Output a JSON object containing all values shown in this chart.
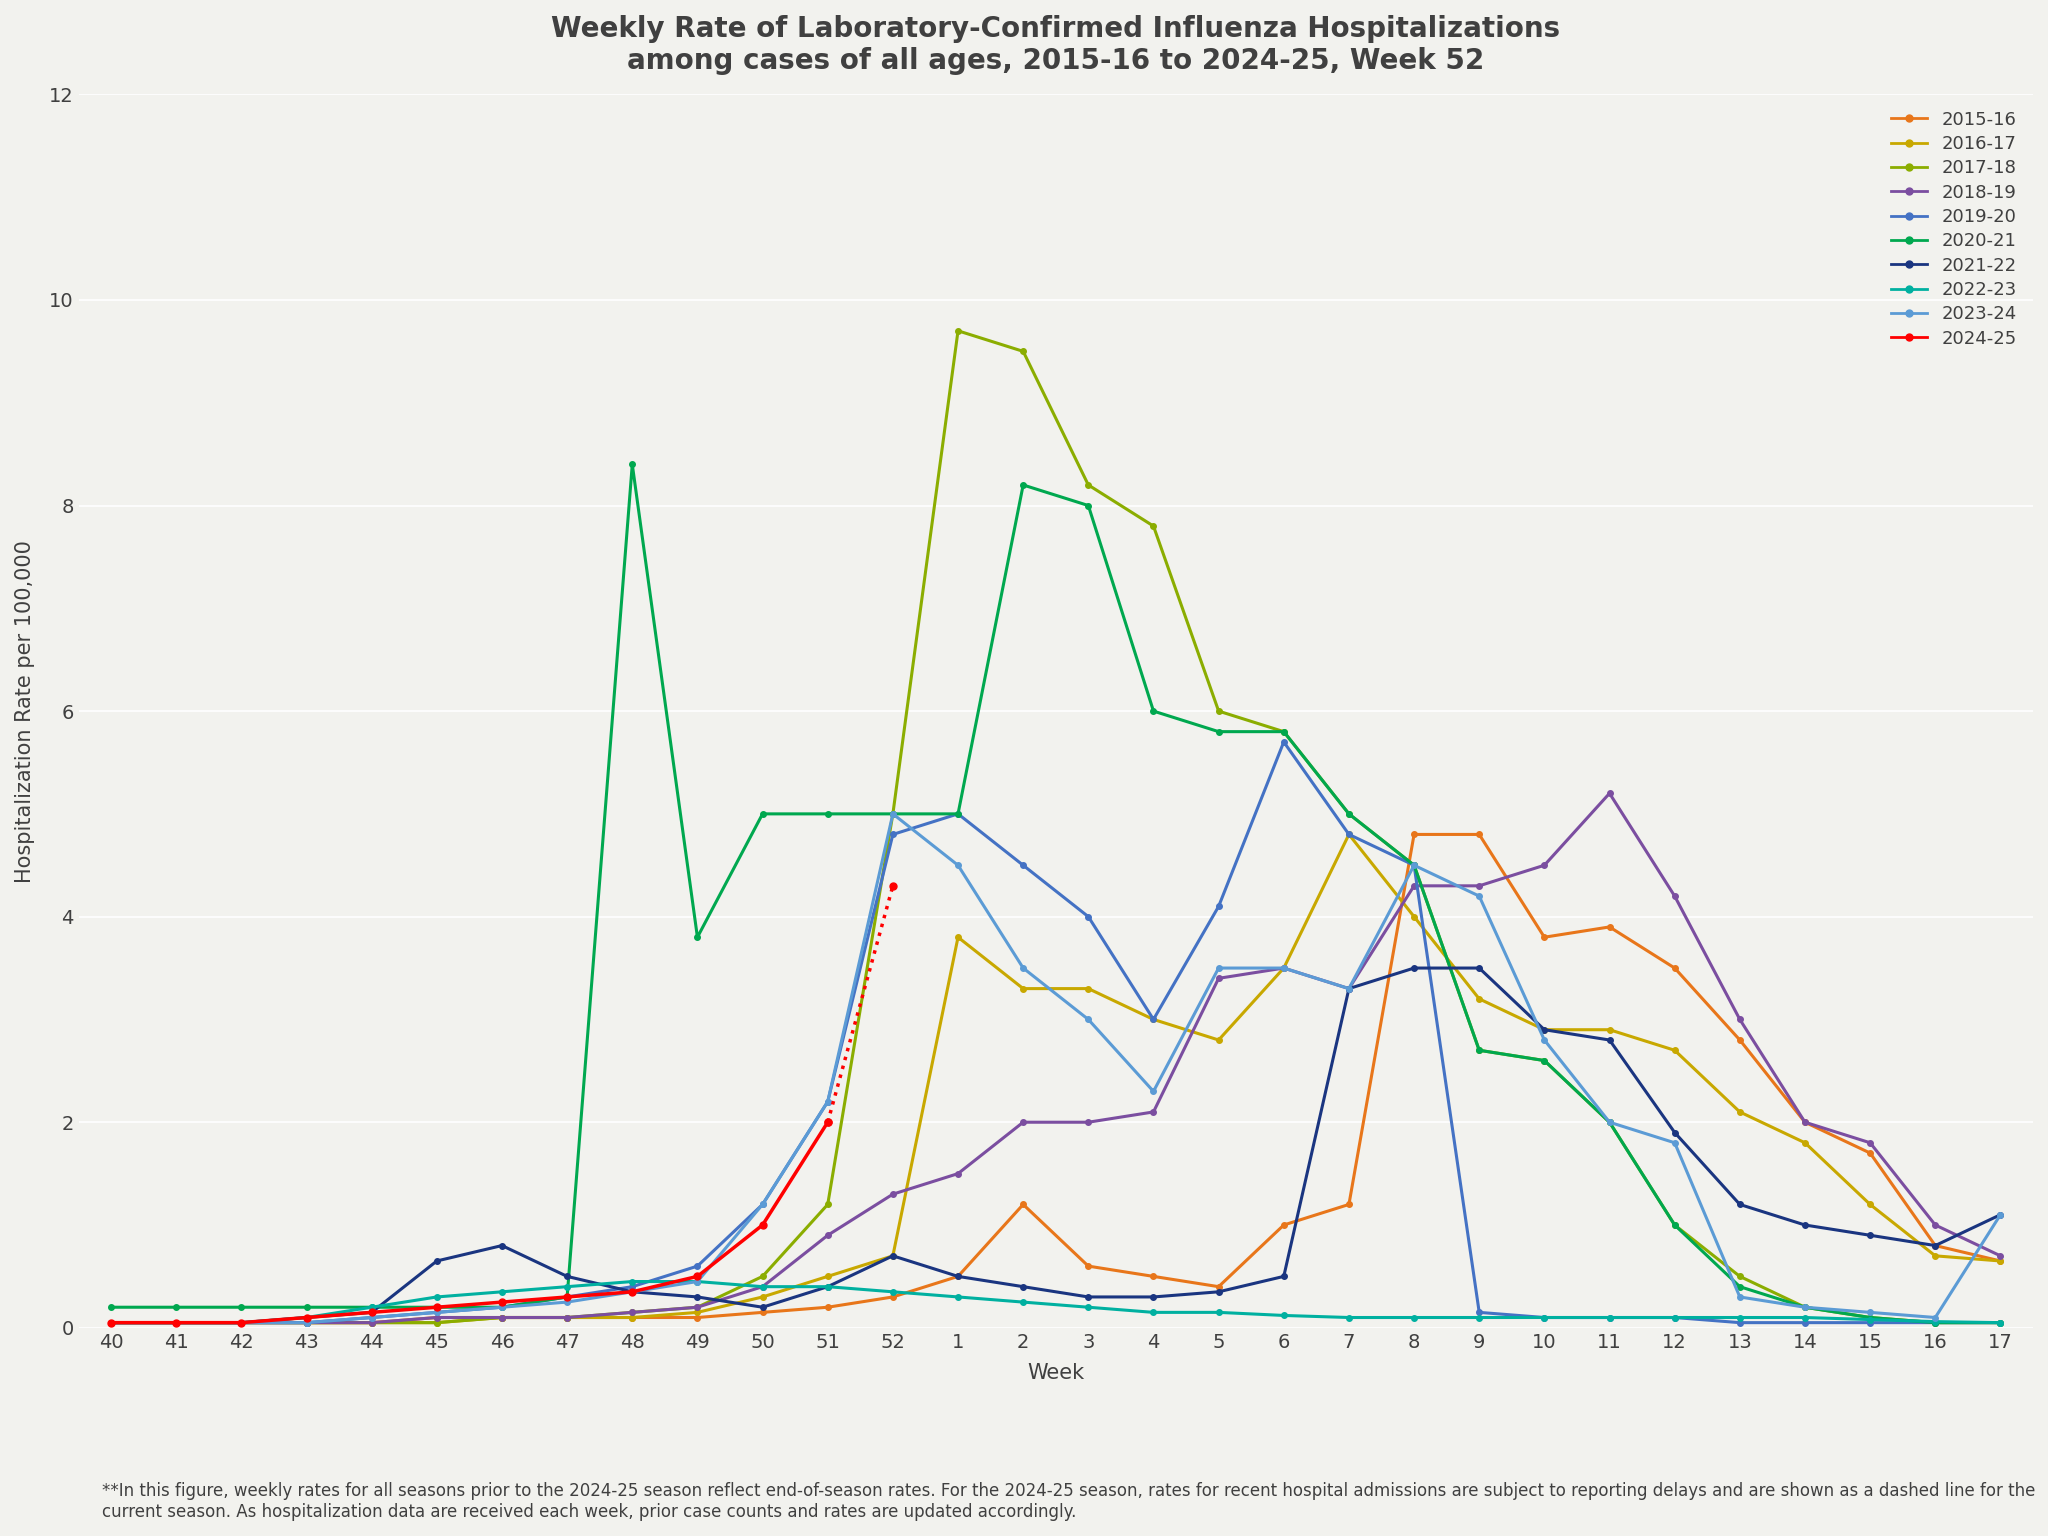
{
  "title": "Weekly Rate of Laboratory-Confirmed Influenza Hospitalizations\namong cases of all ages, 2015-16 to 2024-25, Week 52",
  "xlabel": "Week",
  "ylabel": "Hospitalization Rate per 100,000",
  "background_color": "#f2f2ee",
  "ylim": [
    0,
    12
  ],
  "yticks": [
    0,
    2,
    4,
    6,
    8,
    10,
    12
  ],
  "weeks": [
    "40",
    "41",
    "42",
    "43",
    "44",
    "45",
    "46",
    "47",
    "48",
    "49",
    "50",
    "51",
    "52",
    "1",
    "2",
    "3",
    "4",
    "5",
    "6",
    "7",
    "8",
    "9",
    "10",
    "11",
    "12",
    "13",
    "14",
    "15",
    "16",
    "17"
  ],
  "seasons": {
    "2015-16": {
      "color": "#E8761A",
      "data": [
        0.05,
        0.05,
        0.05,
        0.05,
        0.05,
        0.1,
        0.1,
        0.1,
        0.1,
        0.1,
        0.15,
        0.2,
        0.3,
        0.5,
        1.2,
        0.6,
        0.5,
        0.4,
        1.0,
        1.2,
        4.8,
        4.8,
        3.8,
        3.9,
        3.5,
        2.8,
        2.0,
        1.7,
        0.8,
        0.65
      ]
    },
    "2016-17": {
      "color": "#C8A800",
      "data": [
        0.05,
        0.05,
        0.05,
        0.05,
        0.05,
        0.05,
        0.1,
        0.1,
        0.1,
        0.15,
        0.3,
        0.5,
        0.7,
        3.8,
        3.3,
        3.3,
        3.0,
        2.8,
        3.5,
        4.8,
        4.0,
        3.2,
        2.9,
        2.9,
        2.7,
        2.1,
        1.8,
        1.2,
        0.7,
        0.65
      ]
    },
    "2017-18": {
      "color": "#8BAD00",
      "data": [
        0.05,
        0.05,
        0.05,
        0.05,
        0.05,
        0.05,
        0.1,
        0.1,
        0.15,
        0.2,
        0.5,
        1.2,
        5.0,
        9.7,
        9.5,
        8.2,
        7.8,
        6.0,
        5.8,
        5.0,
        4.5,
        2.7,
        2.6,
        2.0,
        1.0,
        0.5,
        0.2,
        0.1,
        0.05,
        0.05
      ]
    },
    "2018-19": {
      "color": "#7B4EA0",
      "data": [
        0.05,
        0.05,
        0.05,
        0.05,
        0.05,
        0.1,
        0.1,
        0.1,
        0.15,
        0.2,
        0.4,
        0.9,
        1.3,
        1.5,
        2.0,
        2.0,
        2.1,
        3.4,
        3.5,
        3.3,
        4.3,
        4.3,
        4.5,
        5.2,
        4.2,
        3.0,
        2.0,
        1.8,
        1.0,
        0.7
      ]
    },
    "2019-20": {
      "color": "#4472C4",
      "data": [
        0.05,
        0.05,
        0.05,
        0.05,
        0.1,
        0.15,
        0.2,
        0.3,
        0.4,
        0.6,
        1.2,
        2.2,
        4.8,
        5.0,
        4.5,
        4.0,
        3.0,
        4.1,
        5.7,
        4.8,
        4.5,
        0.15,
        0.1,
        0.1,
        0.1,
        0.05,
        0.05,
        0.05,
        0.05,
        0.05
      ]
    },
    "2020-21": {
      "color": "#00A84F",
      "data": [
        0.2,
        0.2,
        0.2,
        0.2,
        0.2,
        0.2,
        0.2,
        0.3,
        8.4,
        3.8,
        5.0,
        5.0,
        5.0,
        5.0,
        8.2,
        8.0,
        6.0,
        5.8,
        5.8,
        5.0,
        4.5,
        2.7,
        2.6,
        2.0,
        1.0,
        0.4,
        0.2,
        0.1,
        0.05,
        0.05
      ]
    },
    "2021-22": {
      "color": "#1A3580",
      "data": [
        0.05,
        0.05,
        0.05,
        0.1,
        0.15,
        0.65,
        0.8,
        0.5,
        0.35,
        0.3,
        0.2,
        0.4,
        0.7,
        0.5,
        0.4,
        0.3,
        0.3,
        0.35,
        0.5,
        3.3,
        3.5,
        3.5,
        2.9,
        2.8,
        1.9,
        1.2,
        1.0,
        0.9,
        0.8,
        1.1
      ]
    },
    "2022-23": {
      "color": "#00B0A0",
      "data": [
        0.05,
        0.05,
        0.05,
        0.1,
        0.2,
        0.3,
        0.35,
        0.4,
        0.45,
        0.45,
        0.4,
        0.4,
        0.35,
        0.3,
        0.25,
        0.2,
        0.15,
        0.15,
        0.12,
        0.1,
        0.1,
        0.1,
        0.1,
        0.1,
        0.1,
        0.1,
        0.1,
        0.08,
        0.06,
        0.05
      ]
    },
    "2023-24": {
      "color": "#5B9BD5",
      "data": [
        0.05,
        0.05,
        0.05,
        0.05,
        0.1,
        0.15,
        0.2,
        0.25,
        0.35,
        0.45,
        1.2,
        2.2,
        5.0,
        4.5,
        3.5,
        3.0,
        2.3,
        3.5,
        3.5,
        3.3,
        4.5,
        4.2,
        2.8,
        2.0,
        1.8,
        0.3,
        0.2,
        0.15,
        0.1,
        1.1
      ]
    },
    "2024-25": {
      "color": "#FF0000",
      "solid_indices": [
        0,
        1,
        2,
        3,
        4,
        5,
        6,
        7,
        8,
        9,
        10,
        11
      ],
      "solid_values": [
        0.05,
        0.05,
        0.05,
        0.1,
        0.15,
        0.2,
        0.25,
        0.3,
        0.35,
        0.5,
        1.0,
        2.0
      ],
      "dashed_indices": [
        11,
        12
      ],
      "dashed_values": [
        2.0,
        4.3
      ]
    }
  },
  "season_order": [
    "2015-16",
    "2016-17",
    "2017-18",
    "2018-19",
    "2019-20",
    "2020-21",
    "2021-22",
    "2022-23",
    "2023-24",
    "2024-25"
  ],
  "footnote": "**In this figure, weekly rates for all seasons prior to the 2024-25 season reflect end-of-season rates. For the 2024-25 season, rates for recent hospital admissions are subject to reporting delays and are shown as a dashed line for the current season. As hospitalization data are received each week, prior case counts and rates are updated accordingly.",
  "title_fontsize": 20,
  "axis_fontsize": 15,
  "tick_fontsize": 14,
  "legend_fontsize": 13,
  "footnote_fontsize": 12
}
